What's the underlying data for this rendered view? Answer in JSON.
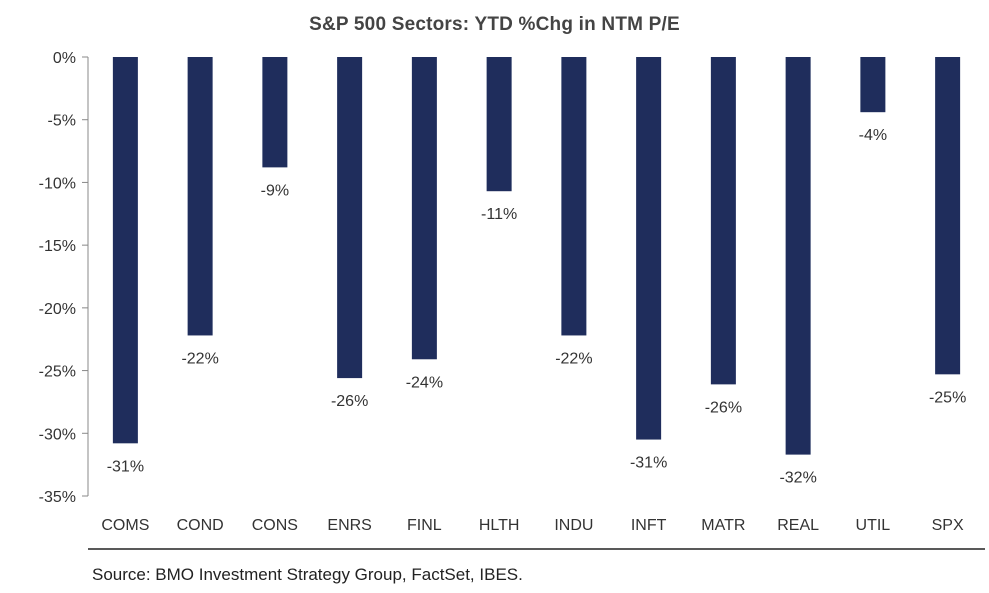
{
  "chart_data": {
    "type": "bar",
    "title": "S&P 500 Sectors: YTD %Chg in NTM P/E",
    "xlabel": "",
    "ylabel": "",
    "ylim": [
      -35,
      0
    ],
    "yticks": [
      0,
      -5,
      -10,
      -15,
      -20,
      -25,
      -30,
      -35
    ],
    "ytick_labels": [
      "0%",
      "-5%",
      "-10%",
      "-15%",
      "-20%",
      "-25%",
      "-30%",
      "-35%"
    ],
    "categories": [
      "COMS",
      "COND",
      "CONS",
      "ENRS",
      "FINL",
      "HLTH",
      "INDU",
      "INFT",
      "MATR",
      "REAL",
      "UTIL",
      "SPX"
    ],
    "values": [
      -30.8,
      -22.2,
      -8.8,
      -25.6,
      -24.1,
      -10.7,
      -22.2,
      -30.5,
      -26.1,
      -31.7,
      -4.4,
      -25.3
    ],
    "data_labels": [
      "-31%",
      "-22%",
      "-9%",
      "-26%",
      "-24%",
      "-11%",
      "-22%",
      "-31%",
      "-26%",
      "-32%",
      "-4%",
      "-25%"
    ],
    "bar_color": "#1f2d5c",
    "grid": false,
    "legend": "none"
  },
  "source": "Source: BMO Investment Strategy Group, FactSet, IBES."
}
